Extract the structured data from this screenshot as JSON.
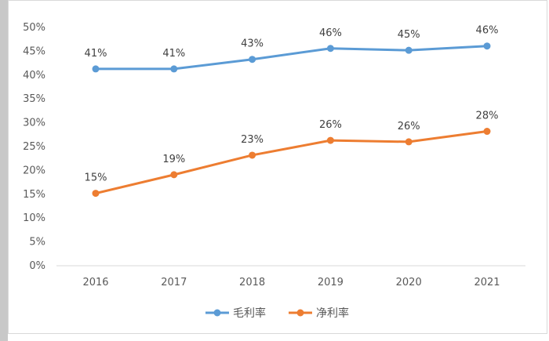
{
  "chart_data": {
    "type": "line",
    "categories": [
      "2016",
      "2017",
      "2018",
      "2019",
      "2020",
      "2021"
    ],
    "series": [
      {
        "name": "毛利率",
        "color": "#5B9BD5",
        "values": [
          41.3,
          41.3,
          43.3,
          45.6,
          45.2,
          46.1
        ],
        "labels": [
          "41%",
          "41%",
          "43%",
          "46%",
          "45%",
          "46%"
        ]
      },
      {
        "name": "净利率",
        "color": "#ED7D31",
        "values": [
          15.2,
          19.1,
          23.2,
          26.3,
          26.0,
          28.2
        ],
        "labels": [
          "15%",
          "19%",
          "23%",
          "26%",
          "26%",
          "28%"
        ]
      }
    ],
    "y_ticks": [
      "0%",
      "5%",
      "10%",
      "15%",
      "20%",
      "25%",
      "30%",
      "35%",
      "40%",
      "45%",
      "50%"
    ],
    "ylim": [
      0,
      50
    ],
    "y_step": 5,
    "legend": "bottom",
    "grid": false
  }
}
